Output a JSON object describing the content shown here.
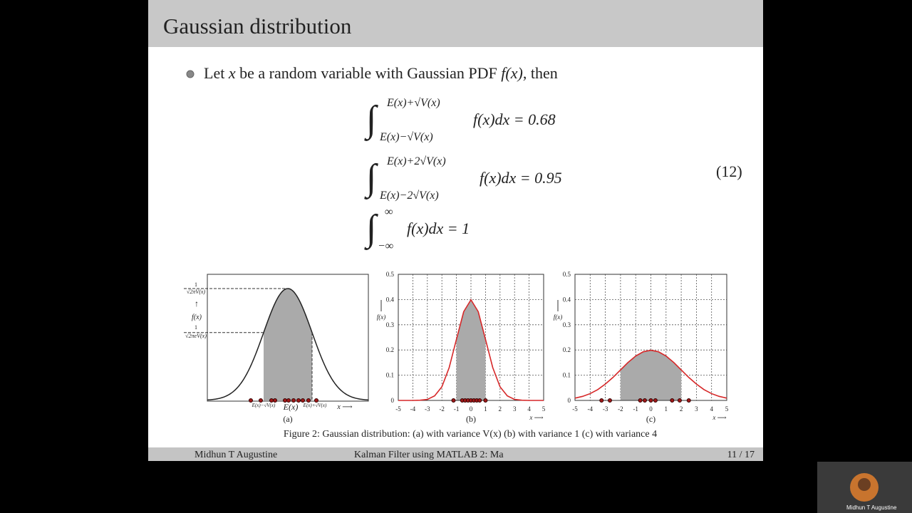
{
  "slide": {
    "title": "Gaussian distribution",
    "bullet": [
      "Let ",
      "x",
      " be a random variable with Gaussian PDF ",
      "f(x)",
      ", then"
    ],
    "math": {
      "integral": "∫",
      "equations": [
        {
          "upper": "E(x)+√V(x)",
          "lower": "E(x)−√V(x)",
          "integrand": "f(x)dx = 0.68"
        },
        {
          "upper": "E(x)+2√V(x)",
          "lower": "E(x)−2√V(x)",
          "integrand": "f(x)dx = 0.95"
        },
        {
          "upper": "∞",
          "lower": "−∞",
          "integrand": "f(x)dx = 1"
        }
      ],
      "number": "(12)"
    },
    "panel_a": {
      "peak_num": "1",
      "peak_den": "√2πV(x)",
      "arrow": "↑",
      "ylabel": "f(x)",
      "mid_num": "1",
      "mid_den": "√2πeV(x)",
      "left": "E(x)−√V(x)",
      "center": "E(x)",
      "right": "E(x)+√V(x)",
      "xlabel": "x ⟶",
      "label": "(a)"
    },
    "caption": "Figure 2: Gaussian distribution:  (a) with variance V(x)    (b) with variance  1    (c) with variance 4",
    "footer": {
      "author": "Midhun T Augustine",
      "talk": "Kalman Filter using MATLAB 2: Ma",
      "page": "11 / 17"
    }
  },
  "participant": {
    "name": "Midhun T Augustine"
  },
  "chart_data": [
    {
      "type": "line",
      "label": "(b)",
      "ylabel": "f(x)",
      "xlabel": "x ⟶",
      "x": [
        -5,
        -4.5,
        -4,
        -3.5,
        -3,
        -2.5,
        -2,
        -1.5,
        -1,
        -0.5,
        0,
        0.5,
        1,
        1.5,
        2,
        2.5,
        3,
        3.5,
        4,
        4.5,
        5
      ],
      "series": [
        {
          "color": "#d62728",
          "values": [
            0,
            0,
            0,
            0.001,
            0.004,
            0.018,
            0.054,
            0.13,
            0.242,
            0.352,
            0.399,
            0.352,
            0.242,
            0.13,
            0.054,
            0.018,
            0.004,
            0.001,
            0,
            0,
            0
          ]
        }
      ],
      "shade": [
        -1,
        1
      ],
      "samples": [
        -1.2,
        -0.6,
        -0.4,
        -0.2,
        0,
        0.2,
        0.4,
        0.6,
        1
      ],
      "xlim": [
        -5,
        5
      ],
      "ylim": [
        0,
        0.5
      ],
      "xticks": [
        -5,
        -4,
        -3,
        -2,
        -1,
        0,
        1,
        2,
        3,
        4,
        5
      ],
      "yticks": [
        0,
        0.1,
        0.2,
        0.3,
        0.4,
        0.5
      ],
      "grid": true
    },
    {
      "type": "line",
      "label": "(c)",
      "ylabel": "f(x)",
      "xlabel": "x ⟶",
      "x": [
        -5,
        -4.5,
        -4,
        -3.5,
        -3,
        -2.5,
        -2,
        -1.5,
        -1,
        -0.5,
        0,
        0.5,
        1,
        1.5,
        2,
        2.5,
        3,
        3.5,
        4,
        4.5,
        5
      ],
      "series": [
        {
          "color": "#d62728",
          "values": [
            0.009,
            0.016,
            0.027,
            0.043,
            0.065,
            0.091,
            0.121,
            0.151,
            0.176,
            0.193,
            0.199,
            0.193,
            0.176,
            0.151,
            0.121,
            0.091,
            0.065,
            0.043,
            0.027,
            0.016,
            0.009
          ]
        }
      ],
      "shade": [
        -2,
        2
      ],
      "samples": [
        -3.25,
        -2.7,
        -0.7,
        -0.4,
        0,
        0.3,
        1.4,
        1.9,
        2.5
      ],
      "xlim": [
        -5,
        5
      ],
      "ylim": [
        0,
        0.5
      ],
      "xticks": [
        -5,
        -4,
        -3,
        -2,
        -1,
        0,
        1,
        2,
        3,
        4,
        5
      ],
      "yticks": [
        0,
        0.1,
        0.2,
        0.3,
        0.4,
        0.5
      ],
      "grid": true
    }
  ]
}
